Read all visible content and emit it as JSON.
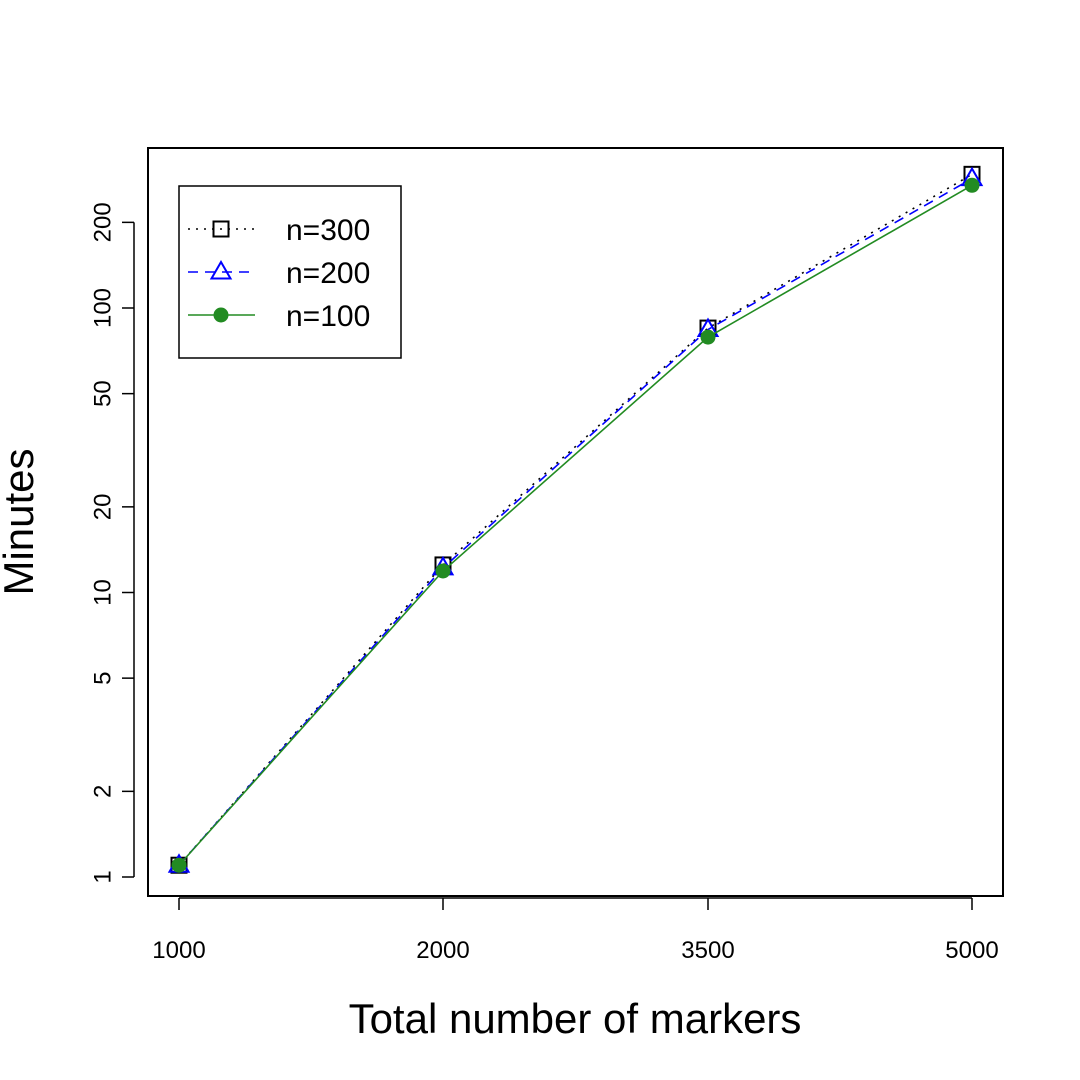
{
  "chart_data": {
    "type": "line",
    "title": "",
    "xlabel": "Total number of markers",
    "ylabel": "Minutes",
    "x_scale": "categorical",
    "y_scale": "log",
    "categories": [
      "1000",
      "2000",
      "3500",
      "5000"
    ],
    "y_ticks": [
      1,
      2,
      5,
      10,
      20,
      50,
      100,
      200
    ],
    "y_tick_labels": [
      "1",
      "2",
      "5",
      "10",
      "20",
      "50",
      "100",
      "200"
    ],
    "ylim": [
      0.94,
      340
    ],
    "grid": false,
    "legend_position": "top-left",
    "series": [
      {
        "name": "n=300",
        "values": [
          1.1,
          12.5,
          85,
          295
        ],
        "color": "#000000",
        "line_style": "dotted",
        "marker": "open-square"
      },
      {
        "name": "n=200",
        "values": [
          1.1,
          12.2,
          84,
          285
        ],
        "color": "#0000ff",
        "line_style": "dashed",
        "marker": "open-triangle"
      },
      {
        "name": "n=100",
        "values": [
          1.1,
          11.9,
          79,
          270
        ],
        "color": "#228b22",
        "line_style": "solid",
        "marker": "filled-circle"
      }
    ]
  }
}
